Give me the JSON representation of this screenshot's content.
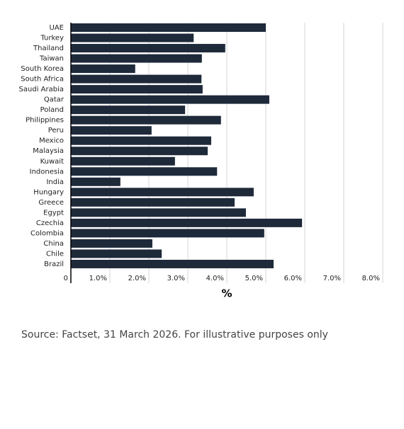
{
  "chart_data": {
    "type": "bar",
    "orientation": "horizontal",
    "categories": [
      "UAE",
      "Turkey",
      "Thailand",
      "Taiwan",
      "South Korea",
      "South Africa",
      "Saudi Arabia",
      "Qatar",
      "Poland",
      "Philippines",
      "Peru",
      "Mexico",
      "Malaysia",
      "Kuwait",
      "Indonesia",
      "India",
      "Hungary",
      "Greece",
      "Egypt",
      "Czechia",
      "Colombia",
      "China",
      "Chile",
      "Brazil"
    ],
    "values": [
      5.0,
      3.15,
      3.96,
      3.36,
      1.65,
      3.35,
      3.38,
      5.09,
      2.93,
      3.85,
      2.07,
      3.6,
      3.51,
      2.67,
      3.75,
      1.27,
      4.69,
      4.2,
      4.49,
      5.93,
      4.96,
      2.09,
      2.33,
      5.2
    ],
    "color": "#1e2a3a",
    "xlim": [
      0,
      8
    ],
    "xticks": [
      {
        "value": 0,
        "label": "0"
      },
      {
        "value": 1,
        "label": "1.0%"
      },
      {
        "value": 2,
        "label": "2.0%"
      },
      {
        "value": 3,
        "label": "3.0%"
      },
      {
        "value": 4,
        "label": "4.0%"
      },
      {
        "value": 5,
        "label": "5.0%"
      },
      {
        "value": 6,
        "label": "6.0%"
      },
      {
        "value": 7,
        "label": "7.0%"
      },
      {
        "value": 8,
        "label": "8.0%"
      }
    ],
    "x_label": "%",
    "grid": true,
    "source": "Source: Factset, 31 March 2026. For illustrative purposes only"
  }
}
